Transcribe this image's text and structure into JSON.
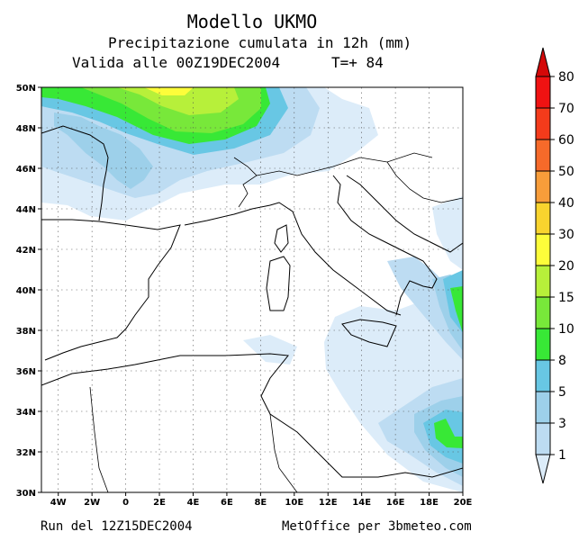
{
  "header": {
    "title": "Modello UKMO",
    "subtitle": "Precipitazione cumulata in 12h (mm)",
    "validity": "Valida alle 00Z19DEC2004",
    "forecast_step": "T=+ 84"
  },
  "footer": {
    "run": "Run del 12Z15DEC2004",
    "credit": "MetOffice per 3bmeteo.com"
  },
  "map": {
    "lon_range": [
      -5,
      20
    ],
    "lat_range": [
      30,
      50
    ],
    "lon_ticks": [
      {
        "value": -4,
        "label": "4W"
      },
      {
        "value": -2,
        "label": "2W"
      },
      {
        "value": 0,
        "label": "0"
      },
      {
        "value": 2,
        "label": "2E"
      },
      {
        "value": 4,
        "label": "4E"
      },
      {
        "value": 6,
        "label": "6E"
      },
      {
        "value": 8,
        "label": "8E"
      },
      {
        "value": 10,
        "label": "10E"
      },
      {
        "value": 12,
        "label": "12E"
      },
      {
        "value": 14,
        "label": "14E"
      },
      {
        "value": 16,
        "label": "16E"
      },
      {
        "value": 18,
        "label": "18E"
      },
      {
        "value": 20,
        "label": "20E"
      }
    ],
    "lat_ticks": [
      {
        "value": 30,
        "label": "30N"
      },
      {
        "value": 32,
        "label": "32N"
      },
      {
        "value": 34,
        "label": "34N"
      },
      {
        "value": 36,
        "label": "36N"
      },
      {
        "value": 38,
        "label": "38N"
      },
      {
        "value": 40,
        "label": "40N"
      },
      {
        "value": 42,
        "label": "42N"
      },
      {
        "value": 44,
        "label": "44N"
      },
      {
        "value": 46,
        "label": "46N"
      },
      {
        "value": 48,
        "label": "48N"
      },
      {
        "value": 50,
        "label": "50N"
      }
    ],
    "grid": "dotted"
  },
  "colorbar": {
    "levels": [
      "1",
      "3",
      "5",
      "8",
      "10",
      "15",
      "20",
      "30",
      "40",
      "50",
      "60",
      "70",
      "80"
    ],
    "colors": [
      "#dcecf9",
      "#bddcf2",
      "#9dd0ea",
      "#68c7e4",
      "#38e836",
      "#78e83a",
      "#b7f03a",
      "#fdfd3a",
      "#f9d42e",
      "#f89d3a",
      "#f66a2a",
      "#f43b1b",
      "#f01212",
      "#d40808"
    ]
  }
}
